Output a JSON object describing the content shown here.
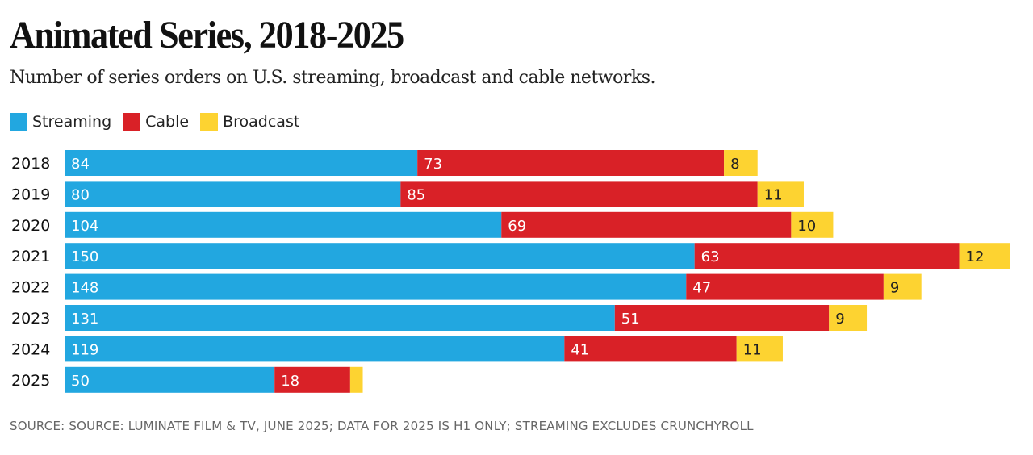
{
  "chart_data": {
    "type": "bar",
    "orientation": "horizontal",
    "stacked": true,
    "title": "Animated Series, 2018-2025",
    "subtitle": "Number of series orders on U.S. streaming, broadcast and cable networks.",
    "categories": [
      "2018",
      "2019",
      "2020",
      "2021",
      "2022",
      "2023",
      "2024",
      "2025"
    ],
    "series": [
      {
        "name": "Streaming",
        "color": "#22a7e0",
        "values": [
          84,
          80,
          104,
          150,
          148,
          131,
          119,
          50
        ]
      },
      {
        "name": "Cable",
        "color": "#d92127",
        "values": [
          73,
          85,
          69,
          63,
          47,
          51,
          41,
          18
        ]
      },
      {
        "name": "Broadcast",
        "color": "#fdd331",
        "values": [
          8,
          11,
          10,
          12,
          9,
          9,
          11,
          3
        ]
      }
    ],
    "data_labels_shown": [
      [
        true,
        true,
        true,
        true,
        true,
        true,
        true,
        true
      ],
      [
        true,
        true,
        true,
        true,
        true,
        true,
        true,
        true
      ],
      [
        true,
        true,
        true,
        true,
        true,
        true,
        true,
        false
      ]
    ],
    "xlim": [
      0,
      225
    ],
    "grid": false,
    "legend_position": "top-left",
    "source": "SOURCE: SOURCE: LUMINATE FILM & TV, JUNE 2025; DATA FOR 2025 IS H1 ONLY; STREAMING EXCLUDES CRUNCHYROLL"
  }
}
